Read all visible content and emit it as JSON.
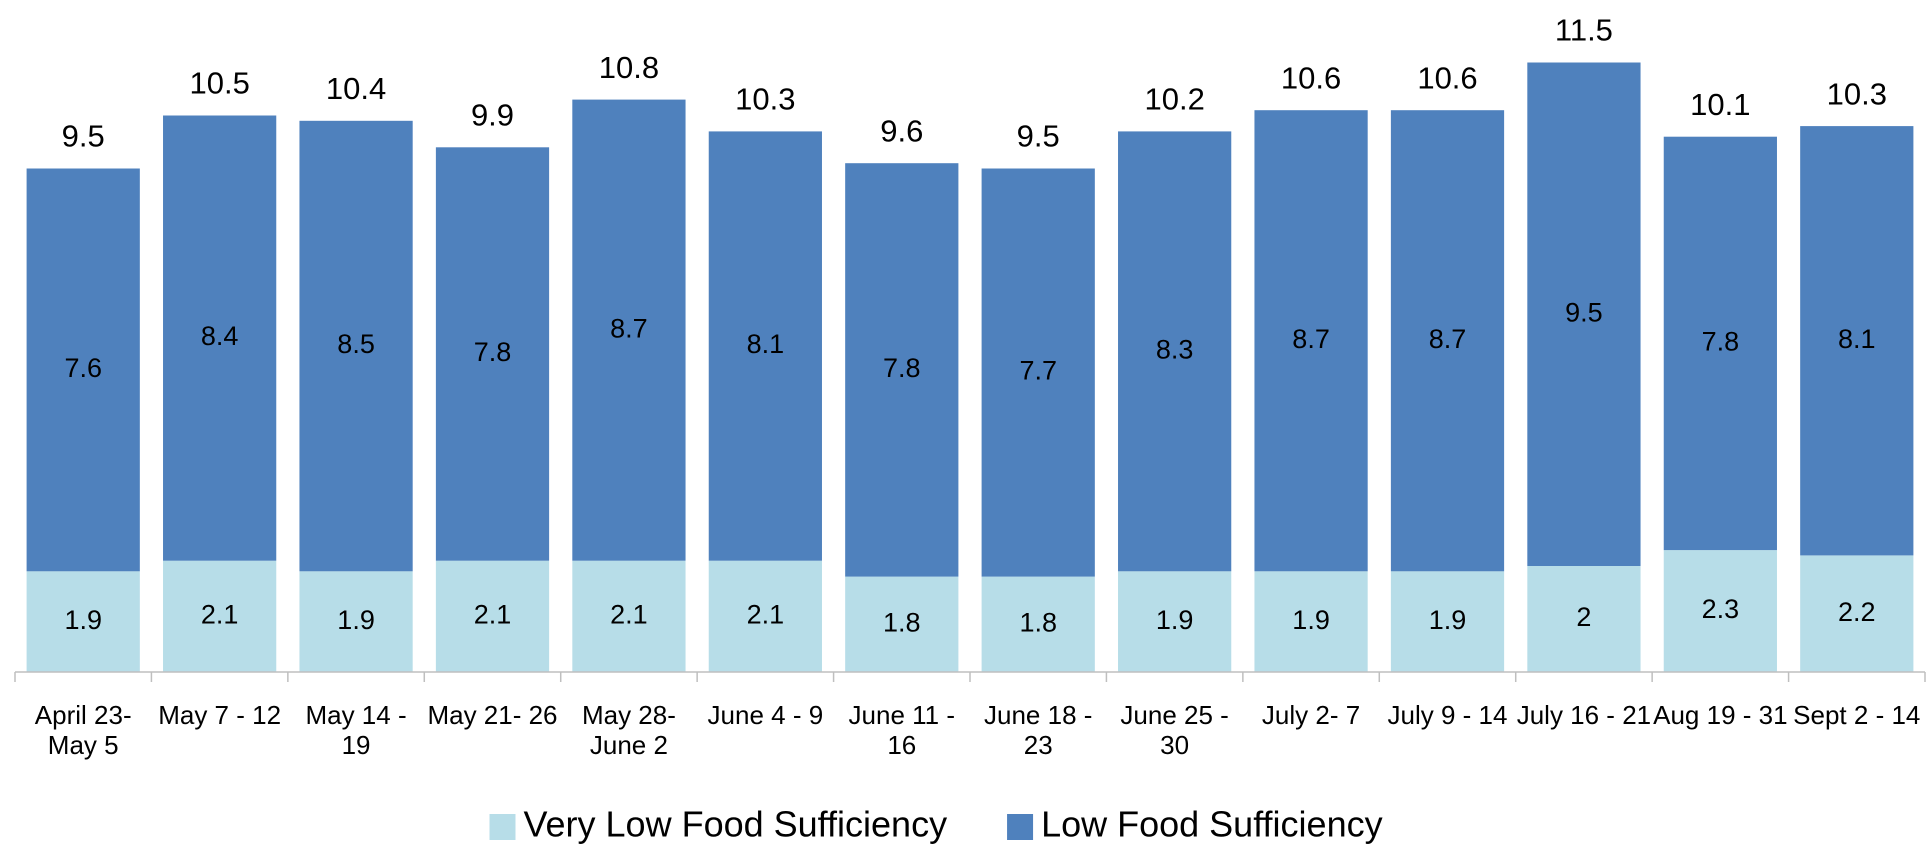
{
  "chart_data": {
    "type": "stacked_bar",
    "categories": [
      "April 23- May 5",
      "May 7 - 12",
      "May 14 - 19",
      "May 21- 26",
      "May 28- June 2",
      "June 4 - 9",
      "June 11 - 16",
      "June 18 - 23",
      "June 25 - 30",
      "July 2- 7",
      "July 9 - 14",
      "July 16 - 21",
      "Aug 19 - 31",
      "Sept 2 - 14"
    ],
    "series": [
      {
        "name": "Very Low Food Sufficiency",
        "color": "#b7dde8",
        "values": [
          1.9,
          2.1,
          1.9,
          2.1,
          2.1,
          2.1,
          1.8,
          1.8,
          1.9,
          1.9,
          1.9,
          2,
          2.3,
          2.2
        ]
      },
      {
        "name": "Low Food Sufficiency",
        "color": "#4f81bd",
        "values": [
          7.6,
          8.4,
          8.5,
          7.8,
          8.7,
          8.1,
          7.8,
          7.7,
          8.3,
          8.7,
          8.7,
          9.5,
          7.8,
          8.1
        ]
      }
    ],
    "totals": [
      9.5,
      10.5,
      10.4,
      9.9,
      10.8,
      10.3,
      9.6,
      9.5,
      10.2,
      10.6,
      10.6,
      11.5,
      10.1,
      10.3
    ],
    "ylim": [
      0,
      12
    ],
    "legend": "bottom"
  }
}
